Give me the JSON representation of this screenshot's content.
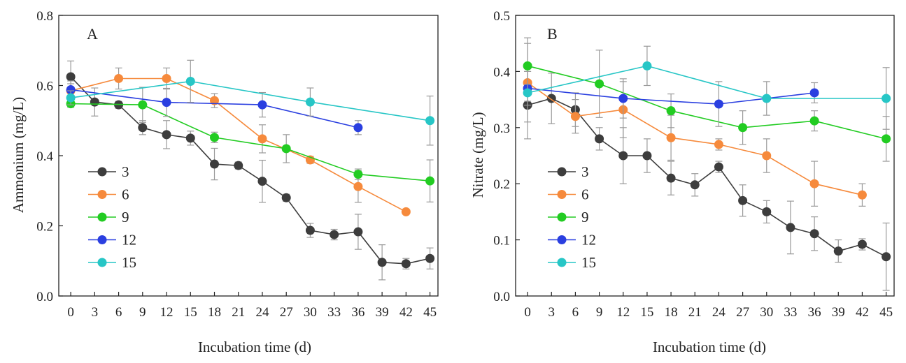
{
  "chart_data": [
    {
      "type": "line",
      "panel_label": "A",
      "xlabel": "Incubation time (d)",
      "ylabel": "Ammonium (mg/L)",
      "xlim": [
        -1.5,
        46
      ],
      "ylim": [
        0,
        0.8
      ],
      "xticks": [
        0,
        3,
        6,
        9,
        12,
        15,
        18,
        21,
        24,
        27,
        30,
        33,
        36,
        39,
        42,
        45
      ],
      "xtick_labels": [
        "0",
        "3",
        "6",
        "9",
        "12",
        "15",
        "18",
        "21",
        "24",
        "27",
        "30",
        "33",
        "36",
        "39",
        "42",
        "45"
      ],
      "yticks": [
        0,
        0.2,
        0.4,
        0.6,
        0.8
      ],
      "ytick_labels": [
        "0.0",
        "0.2",
        "0.4",
        "0.6",
        "0.8"
      ],
      "legend_position": "lower-left",
      "series": [
        {
          "name": "3",
          "color": "#3d3d3d",
          "x": [
            0,
            3,
            6,
            9,
            12,
            15,
            18,
            21,
            24,
            27,
            30,
            33,
            36,
            39,
            42,
            45
          ],
          "y": [
            0.625,
            0.553,
            0.545,
            0.48,
            0.46,
            0.45,
            0.376,
            0.372,
            0.327,
            0.28,
            0.187,
            0.175,
            0.183,
            0.096,
            0.092,
            0.107
          ],
          "err": [
            0.045,
            0.04,
            0.01,
            0.02,
            0.04,
            0.02,
            0.045,
            0.01,
            0.06,
            0.01,
            0.02,
            0.015,
            0.05,
            0.05,
            0.015,
            0.03
          ]
        },
        {
          "name": "6",
          "color": "#f68a3c",
          "x": [
            0,
            6,
            12,
            18,
            24,
            30,
            36,
            42
          ],
          "y": [
            0.585,
            0.62,
            0.62,
            0.557,
            0.448,
            0.388,
            0.312,
            0.24
          ],
          "err": [
            0.02,
            0.03,
            0.03,
            0.02,
            0.04,
            0.01,
            0.045,
            0.005
          ]
        },
        {
          "name": "9",
          "color": "#22cc22",
          "x": [
            0,
            9,
            18,
            27,
            36,
            45
          ],
          "y": [
            0.548,
            0.545,
            0.452,
            0.42,
            0.347,
            0.328
          ],
          "err": [
            0.01,
            0.05,
            0.015,
            0.04,
            0.015,
            0.06
          ]
        },
        {
          "name": "12",
          "color": "#2a3fe0",
          "x": [
            0,
            12,
            24,
            36
          ],
          "y": [
            0.588,
            0.552,
            0.545,
            0.48
          ],
          "err": [
            0.025,
            0.04,
            0.035,
            0.02
          ]
        },
        {
          "name": "15",
          "color": "#27c6c6",
          "x": [
            0,
            15,
            30,
            45
          ],
          "y": [
            0.565,
            0.612,
            0.553,
            0.5
          ],
          "err": [
            0.02,
            0.06,
            0.04,
            0.07
          ]
        }
      ]
    },
    {
      "type": "line",
      "panel_label": "B",
      "xlabel": "Incubation time (d)",
      "ylabel": "Nitrate (mg/L)",
      "xlim": [
        -1.5,
        46
      ],
      "ylim": [
        0,
        0.5
      ],
      "xticks": [
        0,
        3,
        6,
        9,
        12,
        15,
        18,
        21,
        24,
        27,
        30,
        33,
        36,
        39,
        42,
        45
      ],
      "xtick_labels": [
        "0",
        "3",
        "6",
        "9",
        "12",
        "15",
        "18",
        "21",
        "24",
        "27",
        "30",
        "33",
        "36",
        "39",
        "42",
        "45"
      ],
      "yticks": [
        0,
        0.1,
        0.2,
        0.3,
        0.4,
        0.5
      ],
      "ytick_labels": [
        "0.0",
        "0.1",
        "0.2",
        "0.3",
        "0.4",
        "0.5"
      ],
      "legend_position": "lower-left",
      "series": [
        {
          "name": "3",
          "color": "#3d3d3d",
          "x": [
            0,
            3,
            6,
            9,
            12,
            15,
            18,
            21,
            24,
            27,
            30,
            33,
            36,
            39,
            42,
            45
          ],
          "y": [
            0.34,
            0.352,
            0.332,
            0.28,
            0.25,
            0.25,
            0.21,
            0.198,
            0.23,
            0.17,
            0.15,
            0.122,
            0.111,
            0.08,
            0.092,
            0.07
          ],
          "err": [
            0.06,
            0.045,
            0.03,
            0.02,
            0.05,
            0.03,
            0.03,
            0.02,
            0.01,
            0.028,
            0.02,
            0.047,
            0.03,
            0.02,
            0.01,
            0.06
          ]
        },
        {
          "name": "6",
          "color": "#f68a3c",
          "x": [
            0,
            6,
            12,
            18,
            24,
            30,
            36,
            42
          ],
          "y": [
            0.38,
            0.32,
            0.332,
            0.282,
            0.27,
            0.25,
            0.2,
            0.18
          ],
          "err": [
            0.07,
            0.03,
            0.05,
            0.04,
            0.01,
            0.03,
            0.04,
            0.02
          ]
        },
        {
          "name": "9",
          "color": "#22cc22",
          "x": [
            0,
            9,
            18,
            27,
            36,
            45
          ],
          "y": [
            0.41,
            0.378,
            0.33,
            0.3,
            0.312,
            0.28
          ],
          "err": [
            0.05,
            0.06,
            0.03,
            0.03,
            0.018,
            0.04
          ]
        },
        {
          "name": "12",
          "color": "#2a3fe0",
          "x": [
            0,
            12,
            24,
            36
          ],
          "y": [
            0.37,
            0.352,
            0.342,
            0.362
          ],
          "err": [
            0.03,
            0.035,
            0.04,
            0.018
          ]
        },
        {
          "name": "15",
          "color": "#27c6c6",
          "x": [
            0,
            15,
            30,
            45
          ],
          "y": [
            0.362,
            0.41,
            0.352,
            0.352
          ],
          "err": [
            0.015,
            0.035,
            0.03,
            0.055
          ]
        }
      ]
    }
  ]
}
